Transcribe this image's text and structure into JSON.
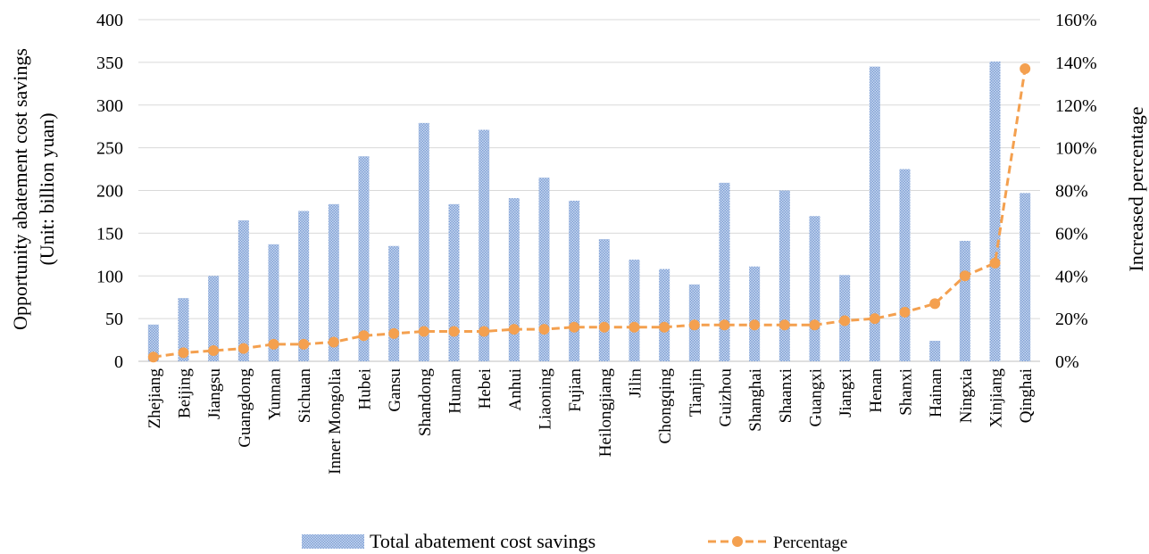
{
  "chart_data": {
    "type": "bar",
    "categories": [
      "Zhejiang",
      "Beijing",
      "Jiangsu",
      "Guangdong",
      "Yunnan",
      "Sichuan",
      "Inner Mongolia",
      "Hubei",
      "Gansu",
      "Shandong",
      "Hunan",
      "Hebei",
      "Anhui",
      "Liaoning",
      "Fujian",
      "Heilongjiang",
      "Jilin",
      "Chongqing",
      "Tianjin",
      "Guizhou",
      "Shanghai",
      "Shaanxi",
      "Guangxi",
      "Jiangxi",
      "Henan",
      "Shanxi",
      "Hainan",
      "Ningxia",
      "Xinjiang",
      "Qinghai"
    ],
    "series": [
      {
        "name": "Total abatement cost savings",
        "type": "bar",
        "axis": "left",
        "color": "#9fb8e0",
        "values": [
          43,
          74,
          100,
          165,
          137,
          176,
          184,
          240,
          135,
          279,
          184,
          271,
          191,
          215,
          188,
          143,
          119,
          108,
          90,
          209,
          111,
          200,
          170,
          101,
          345,
          225,
          24,
          141,
          351,
          197
        ]
      },
      {
        "name": "Percentage",
        "type": "line",
        "axis": "right",
        "color": "#f4a04f",
        "values": [
          2,
          4,
          5,
          6,
          8,
          8,
          9,
          12,
          13,
          14,
          14,
          14,
          15,
          15,
          16,
          16,
          16,
          16,
          17,
          17,
          17,
          17,
          17,
          19,
          20,
          23,
          27,
          40,
          46,
          137
        ]
      }
    ],
    "ylabel_left_line1": "Opportunity abatement cost savings",
    "ylabel_left_line2": "(Unit:  billion  yuan)",
    "ylabel_right": "Increased percentage",
    "ylim_left": [
      0,
      400
    ],
    "ylim_right": [
      0,
      160
    ],
    "yticks_left": [
      "0",
      "50",
      "100",
      "150",
      "200",
      "250",
      "300",
      "350",
      "400"
    ],
    "yticks_right": [
      "0%",
      "20%",
      "40%",
      "60%",
      "80%",
      "100%",
      "120%",
      "140%",
      "160%"
    ],
    "grid": true,
    "legend_position": "bottom"
  }
}
